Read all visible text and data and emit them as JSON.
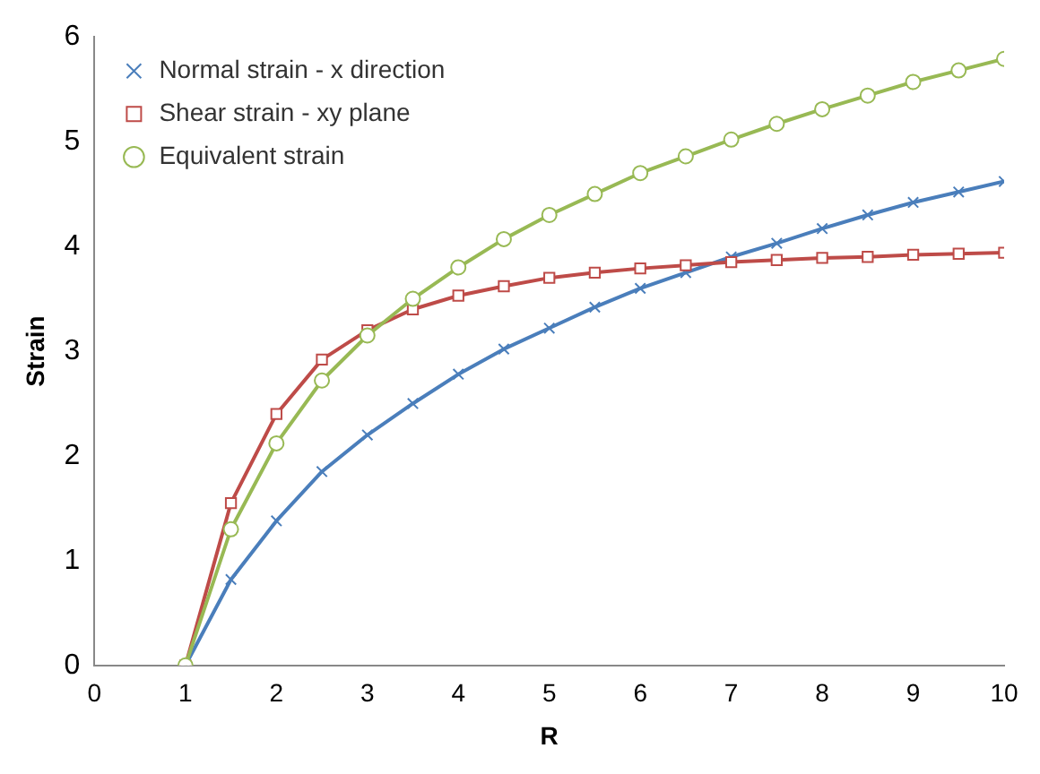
{
  "chart_data": {
    "type": "line",
    "xlabel": "R",
    "ylabel": "Strain",
    "xlim": [
      0,
      10
    ],
    "xticks": [
      0,
      1,
      2,
      3,
      4,
      5,
      6,
      7,
      8,
      9,
      10
    ],
    "ylim": [
      0,
      6
    ],
    "yticks": [
      0,
      1,
      2,
      3,
      4,
      5,
      6
    ],
    "grid": false,
    "legend": "top left",
    "x": [
      1,
      1.5,
      2,
      2.5,
      3,
      3.5,
      4,
      4.5,
      5,
      5.5,
      6,
      6.5,
      7,
      7.5,
      8,
      8.5,
      9,
      9.5,
      10
    ],
    "series": [
      {
        "name": "Normal strain - x direction",
        "color": "#4a7ebb",
        "marker": "cross",
        "values": [
          0,
          0.82,
          1.38,
          1.85,
          2.2,
          2.5,
          2.78,
          3.02,
          3.22,
          3.42,
          3.6,
          3.75,
          3.9,
          4.03,
          4.17,
          4.3,
          4.42,
          4.52,
          4.62
        ]
      },
      {
        "name": "Shear strain - xy plane",
        "color": "#be4b48",
        "marker": "square",
        "values": [
          0,
          1.55,
          2.4,
          2.92,
          3.2,
          3.4,
          3.53,
          3.62,
          3.7,
          3.75,
          3.79,
          3.82,
          3.85,
          3.87,
          3.89,
          3.9,
          3.92,
          3.93,
          3.94
        ]
      },
      {
        "name": "Equivalent strain",
        "color": "#98b954",
        "marker": "circle",
        "values": [
          0,
          1.3,
          2.12,
          2.72,
          3.15,
          3.5,
          3.8,
          4.07,
          4.3,
          4.5,
          4.7,
          4.86,
          5.02,
          5.17,
          5.31,
          5.44,
          5.57,
          5.68,
          5.79
        ]
      }
    ]
  }
}
